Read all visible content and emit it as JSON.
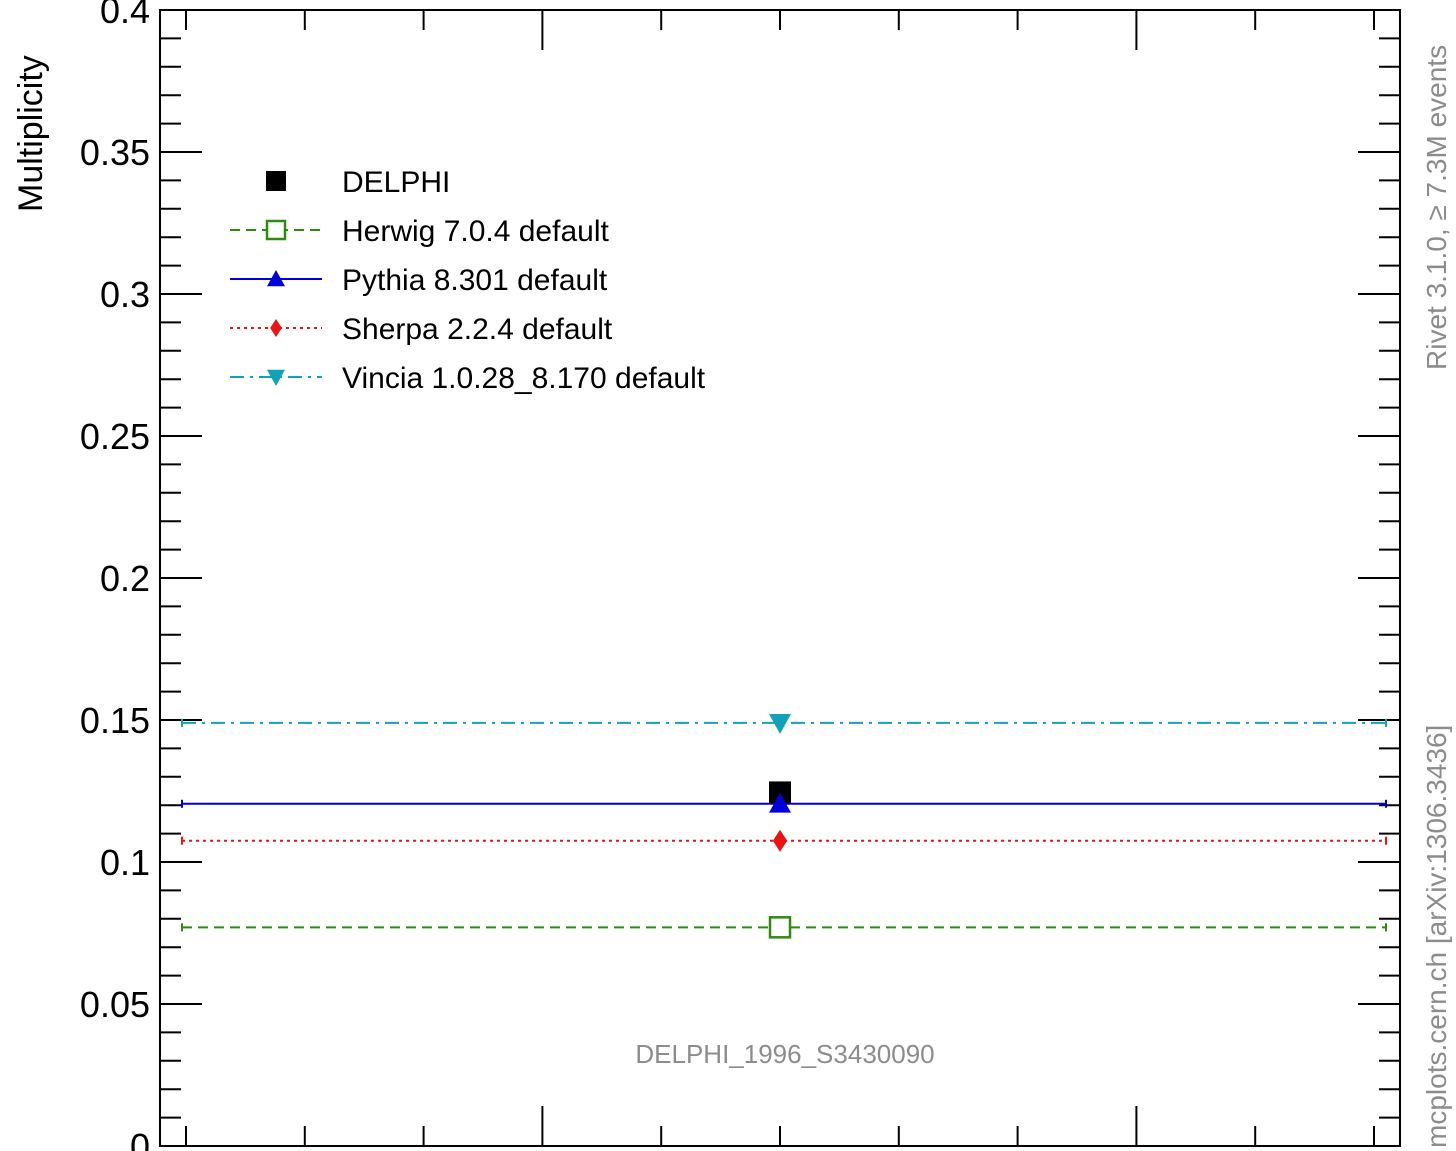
{
  "chart_data": {
    "type": "scatter",
    "ylabel": "Multiplicity",
    "ylim": [
      0,
      0.4
    ],
    "y_ticks": [
      "0",
      "0.05",
      "0.1",
      "0.15",
      "0.2",
      "0.25",
      "0.3",
      "0.35",
      "0.4"
    ],
    "y_tick_values": [
      0,
      0.05,
      0.1,
      0.15,
      0.2,
      0.25,
      0.3,
      0.35,
      0.4
    ],
    "grid": false,
    "legend_position": "top-left",
    "series": [
      {
        "name": "DELPHI",
        "y": 0.1245,
        "style": "data",
        "marker": "square-filled",
        "color": "#000000"
      },
      {
        "name": "Herwig 7.0.4 default",
        "y": 0.077,
        "style": "dashed",
        "marker": "square-open",
        "color": "#2e8b10"
      },
      {
        "name": "Pythia 8.301 default",
        "y": 0.1205,
        "style": "solid",
        "marker": "triangle-up",
        "color": "#0000dd"
      },
      {
        "name": "Sherpa 2.2.4 default",
        "y": 0.1075,
        "style": "dotted",
        "marker": "diamond",
        "color": "#ee1111"
      },
      {
        "name": "Vincia 1.0.28_8.170 default",
        "y": 0.149,
        "style": "dashdot",
        "marker": "triangle-down",
        "color": "#11a2bb"
      }
    ],
    "analysis_label": "DELPHI_1996_S3430090",
    "side_label_top": "Rivet 3.1.0, ≥ 7.3M events",
    "side_label_bottom": "mcplots.cern.ch [arXiv:1306.3436]"
  }
}
